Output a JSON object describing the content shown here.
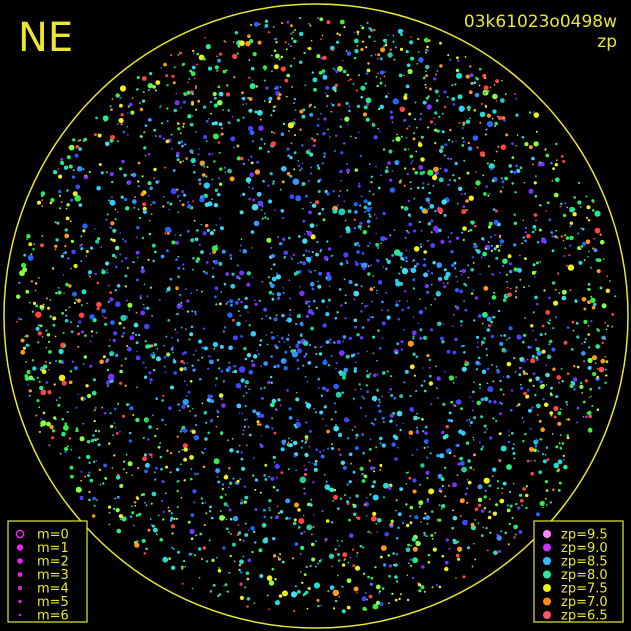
{
  "header": {
    "direction": "NE",
    "image_id": "03k61023o0498w",
    "mode": "zp"
  },
  "legend_magnitude": [
    "m=0",
    "m=1",
    "m=2",
    "m=3",
    "m=4",
    "m=5",
    "m=6"
  ],
  "legend_zp": [
    {
      "label": "zp=9.5",
      "color": "#ff88ff"
    },
    {
      "label": "zp=9.0",
      "color": "#cc33ff"
    },
    {
      "label": "zp=8.5",
      "color": "#33bbff"
    },
    {
      "label": "zp=8.0",
      "color": "#22ee99"
    },
    {
      "label": "zp=7.5",
      "color": "#eeee11"
    },
    {
      "label": "zp=7.0",
      "color": "#ff8811"
    },
    {
      "label": "zp=6.5",
      "color": "#ff5566"
    }
  ]
}
